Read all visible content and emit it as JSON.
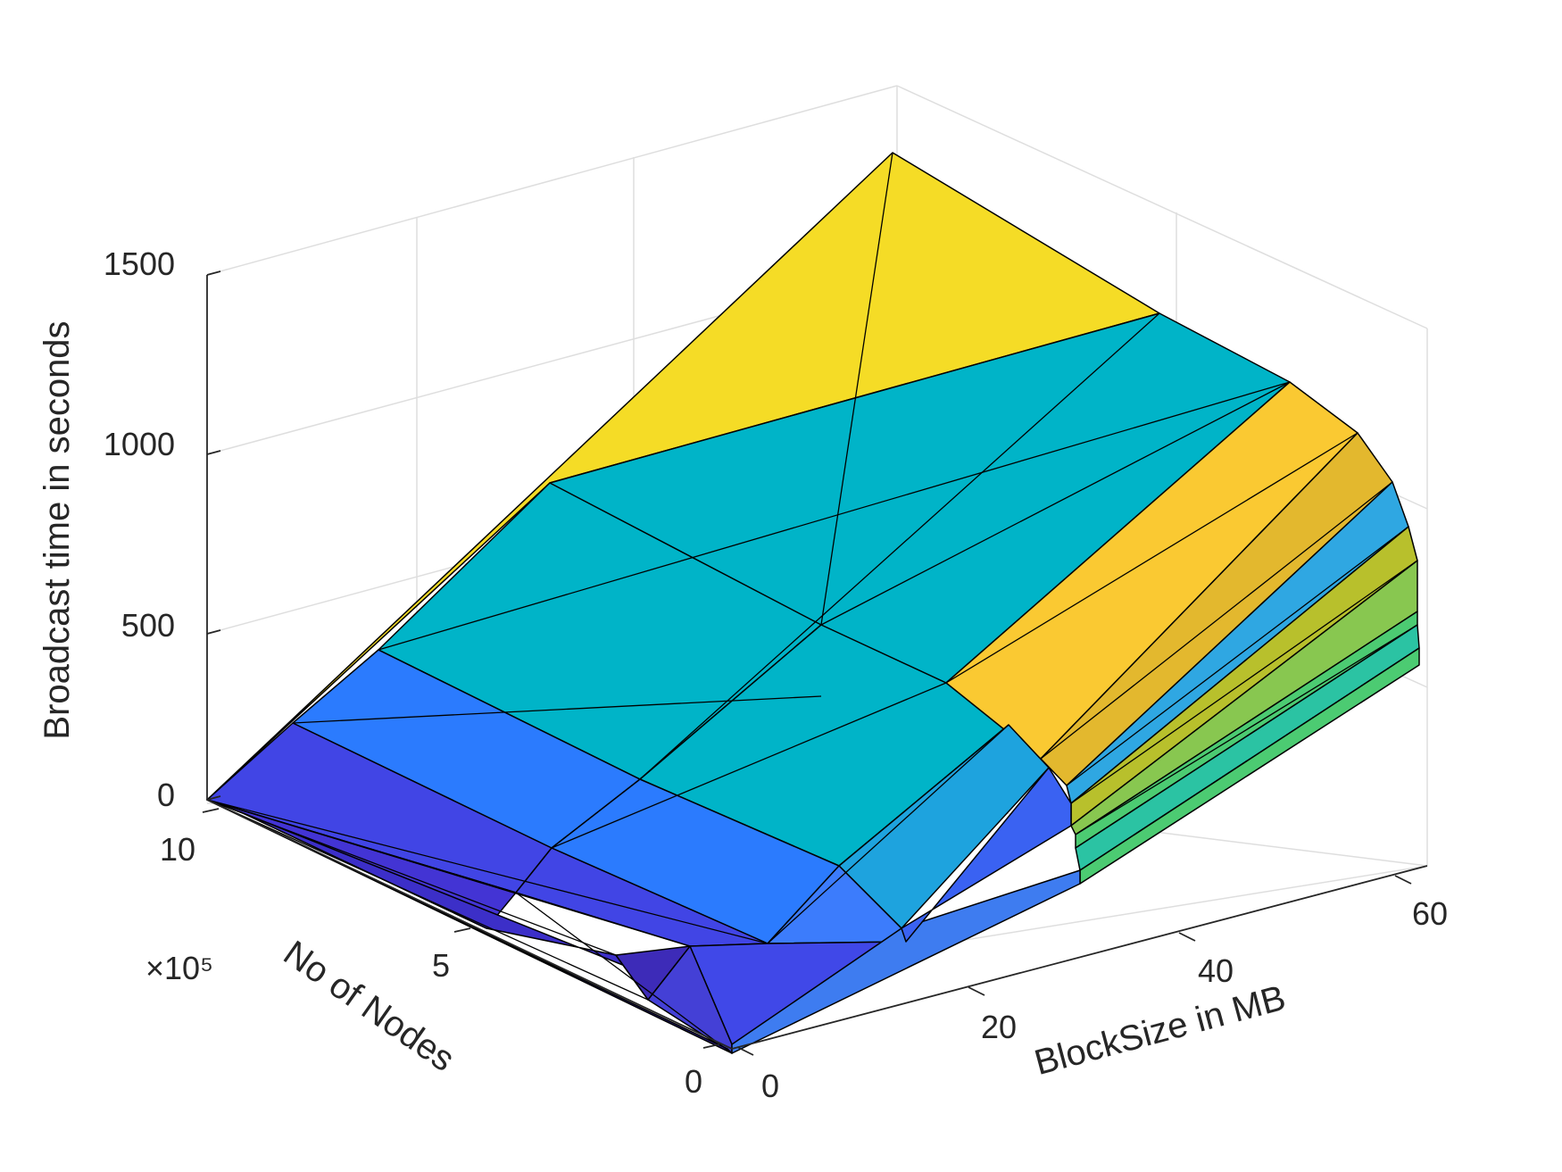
{
  "chart_data": {
    "type": "surface3d",
    "title": "",
    "xlabel": "BlockSize in MB",
    "ylabel": "No of Nodes",
    "zlabel": "Broadcast time in seconds",
    "y_exponent_label": "×10⁵",
    "x_ticks": [
      "0",
      "20",
      "40",
      "60"
    ],
    "y_ticks": [
      "0",
      "5",
      "10"
    ],
    "z_ticks": [
      "0",
      "500",
      "1000",
      "1500"
    ],
    "xlim": [
      0,
      64
    ],
    "ylim": [
      0,
      1000000
    ],
    "zlim": [
      0,
      1900
    ],
    "grid": true,
    "surface": {
      "block_size_mb": [
        0,
        1,
        2,
        4,
        8,
        16,
        20,
        28,
        32,
        40,
        48,
        56,
        64
      ],
      "nodes": [
        10000,
        50000,
        100000,
        200000,
        300000,
        400000,
        500000,
        600000,
        800000,
        1000000
      ],
      "edge_broadcast_time_s": {
        "max_nodes_vs_block_size": [
          {
            "block_size_mb": 0,
            "time_s": 0
          },
          {
            "block_size_mb": 1,
            "time_s": 30
          },
          {
            "block_size_mb": 2,
            "time_s": 60
          },
          {
            "block_size_mb": 4,
            "time_s": 110
          },
          {
            "block_size_mb": 8,
            "time_s": 230
          },
          {
            "block_size_mb": 16,
            "time_s": 470
          },
          {
            "block_size_mb": 32,
            "time_s": 945
          },
          {
            "block_size_mb": 64,
            "time_s": 1820
          }
        ],
        "max_block_size_vs_nodes": [
          {
            "nodes": 10000,
            "time_s": 2
          },
          {
            "nodes": 100000,
            "time_s": 115
          },
          {
            "nodes": 200000,
            "time_s": 190
          },
          {
            "nodes": 300000,
            "time_s": 300
          },
          {
            "nodes": 400000,
            "time_s": 420
          },
          {
            "nodes": 500000,
            "time_s": 940
          },
          {
            "nodes": 700000,
            "time_s": 1170
          },
          {
            "nodes": 1000000,
            "time_s": 1820
          }
        ]
      }
    },
    "colors": {
      "low": "#3e26a8",
      "mid_low": "#4145e5",
      "mid": "#2b7bfe",
      "teal": "#00b4c8",
      "green": "#4ccb72",
      "yellow": "#f5dc26",
      "grid": "#dedede",
      "axis": "#262626"
    }
  }
}
